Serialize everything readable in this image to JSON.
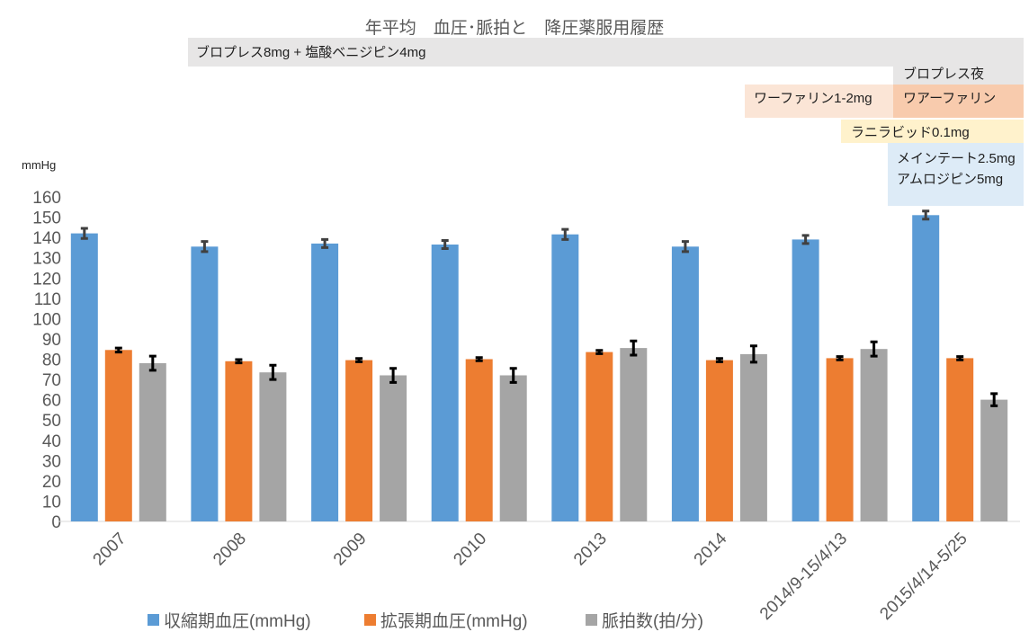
{
  "chart_data": {
    "type": "bar",
    "title": "年平均　血圧･脈拍と　降圧薬服用履歴",
    "xlabel": "",
    "ylabel": "mmHg",
    "ylim": [
      0,
      160
    ],
    "yticks": [
      0,
      10,
      20,
      30,
      40,
      50,
      60,
      70,
      80,
      90,
      100,
      110,
      120,
      130,
      140,
      150,
      160
    ],
    "categories": [
      "2007",
      "2008",
      "2009",
      "2010",
      "2013",
      "2014",
      "2014/9-15/4/13",
      "2015/4/14-5/25"
    ],
    "series": [
      {
        "name": "収縮期血圧(mmHg)",
        "color": "#5B9BD5",
        "error_color": "#404040",
        "values": [
          142,
          135.5,
          137,
          136.5,
          141.5,
          135.5,
          139,
          151
        ],
        "errors": [
          2.5,
          2.5,
          2,
          2,
          2.5,
          2.5,
          2,
          2
        ]
      },
      {
        "name": "拡張期血圧(mmHg)",
        "color": "#ED7D31",
        "error_color": "#000000",
        "values": [
          84.5,
          79,
          79.5,
          80,
          83.5,
          79.5,
          80.5,
          80.5
        ],
        "errors": [
          1,
          0.8,
          0.8,
          0.8,
          0.8,
          0.8,
          0.8,
          0.8
        ]
      },
      {
        "name": "脈拍数(拍/分)",
        "color": "#A5A5A5",
        "error_color": "#000000",
        "values": [
          78,
          73.5,
          72,
          72,
          85.5,
          82.5,
          85,
          60
        ],
        "errors": [
          3.5,
          3.5,
          3.5,
          3.5,
          3.5,
          4,
          3.5,
          3
        ]
      }
    ],
    "error_bars": true,
    "grid": false,
    "legend": "bottom",
    "annotations": [
      {
        "text": "ブロプレス8mg + 塩酸ベニジピン4mg",
        "color": "#E7E6E6"
      },
      {
        "text": "ブロプレス夜",
        "color": "#E7E6E6"
      },
      {
        "text": "ワーファリン1-2mg",
        "color": "#FBE5D6"
      },
      {
        "text": "ワアーファリン",
        "color": "#F8CBAD"
      },
      {
        "text": "ラニラビッド0.1mg",
        "color": "#FFF2CC"
      },
      {
        "lines": [
          "メインテート2.5mg",
          "アムロジピン5mg"
        ],
        "color": "#DDEBF7"
      }
    ]
  }
}
